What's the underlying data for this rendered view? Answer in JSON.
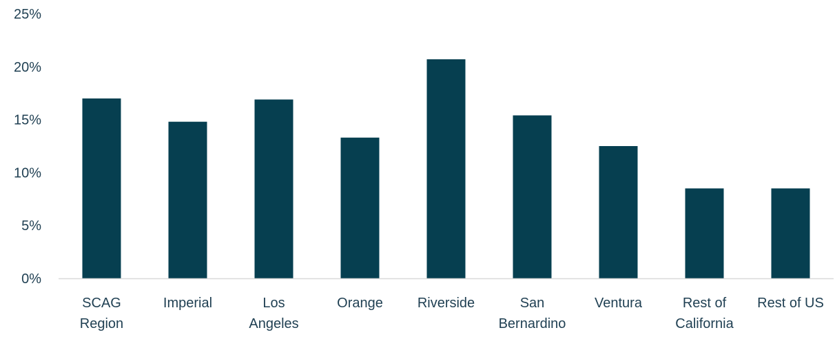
{
  "chart_data": {
    "type": "bar",
    "categories": [
      [
        "SCAG",
        "Region"
      ],
      [
        "Imperial"
      ],
      [
        "Los",
        "Angeles"
      ],
      [
        "Orange"
      ],
      [
        "Riverside"
      ],
      [
        "San",
        "Bernardino"
      ],
      [
        "Ventura"
      ],
      [
        "Rest of",
        "California"
      ],
      [
        "Rest of US"
      ]
    ],
    "values": [
      17.0,
      14.8,
      16.9,
      13.3,
      20.7,
      15.4,
      12.5,
      8.5,
      8.5
    ],
    "ylim": [
      0,
      25
    ],
    "yticks": [
      0,
      5,
      10,
      15,
      20,
      25
    ],
    "ytick_labels": [
      "0%",
      "5%",
      "10%",
      "15%",
      "20%",
      "25%"
    ],
    "title": "",
    "xlabel": "",
    "ylabel": "",
    "grid": false,
    "legend": "none",
    "bar_color": "#063f50",
    "text_color": "#1f3f52",
    "axis_color": "#d9d9d9"
  }
}
